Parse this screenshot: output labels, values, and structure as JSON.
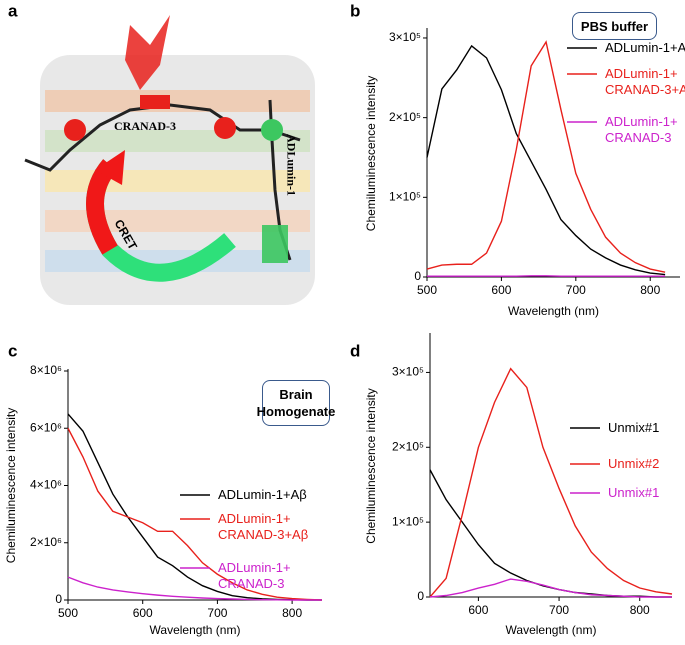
{
  "panel_a": {
    "label": "a",
    "labels": [
      "CRANAD-3",
      "ADLumin-1",
      "CRET"
    ]
  },
  "chart_data": [
    {
      "type": "line",
      "panel": "b",
      "annotation": "PBS buffer",
      "xlabel": "Wavelength (nm)",
      "ylabel": "Chemiluminescence intensity",
      "x": [
        500,
        520,
        540,
        560,
        580,
        600,
        620,
        640,
        660,
        680,
        700,
        720,
        740,
        760,
        780,
        800,
        820
      ],
      "xlim": [
        500,
        840
      ],
      "xticks": [
        500,
        600,
        700,
        800
      ],
      "ylim": [
        0,
        310000
      ],
      "yticks": [
        0,
        {
          "value": 100000,
          "label": "1×10⁵"
        },
        {
          "value": 200000,
          "label": "2×10⁵"
        },
        {
          "value": 300000,
          "label": "3×10⁵"
        }
      ],
      "series": [
        {
          "name": "ADLumin-1+Aβ",
          "color": "#000000",
          "values": [
            150000,
            236000,
            260000,
            290000,
            275000,
            235000,
            180000,
            145000,
            110000,
            72000,
            52000,
            35000,
            24000,
            15000,
            9000,
            5000,
            3000
          ]
        },
        {
          "name": "ADLumin-1+ CRANAD-3+Aβ",
          "color": "#e8211c",
          "values": [
            10000,
            15000,
            16000,
            16000,
            30000,
            70000,
            160000,
            265000,
            295000,
            210000,
            130000,
            85000,
            50000,
            30000,
            18000,
            10000,
            6000
          ]
        },
        {
          "name": "ADLumin-1+ CRANAD-3",
          "color": "#cc22cc",
          "values": [
            1000,
            1000,
            1000,
            1000,
            1000,
            1000,
            1000,
            1500,
            1500,
            1000,
            1000,
            1000,
            1000,
            1000,
            1000,
            1000,
            1000
          ]
        }
      ]
    },
    {
      "type": "line",
      "panel": "c",
      "annotation": "Brain Homogenate",
      "xlabel": "Wavelength (nm)",
      "ylabel": "Chemiluminescence intensity",
      "x": [
        500,
        520,
        540,
        560,
        580,
        600,
        620,
        640,
        660,
        680,
        700,
        720,
        740,
        760,
        780,
        800,
        820,
        840
      ],
      "xlim": [
        500,
        840
      ],
      "xticks": [
        500,
        600,
        700,
        800
      ],
      "ylim": [
        0,
        8000000
      ],
      "yticks": [
        0,
        {
          "value": 2000000,
          "label": "2×10⁶"
        },
        {
          "value": 4000000,
          "label": "4×10⁶"
        },
        {
          "value": 6000000,
          "label": "6×10⁶"
        },
        {
          "value": 8000000,
          "label": "8×10⁶"
        }
      ],
      "series": [
        {
          "name": "ADLumin-1+Aβ",
          "color": "#000000",
          "values": [
            6500000,
            5900000,
            4800000,
            3700000,
            2900000,
            2200000,
            1500000,
            1200000,
            800000,
            500000,
            300000,
            150000,
            80000,
            40000,
            20000,
            10000,
            0,
            0
          ]
        },
        {
          "name": "ADLumin-1+ CRANAD-3+Aβ",
          "color": "#e8211c",
          "values": [
            6000000,
            5000000,
            3800000,
            3100000,
            2900000,
            2700000,
            2400000,
            2400000,
            1900000,
            1300000,
            900000,
            600000,
            350000,
            200000,
            100000,
            50000,
            20000,
            0
          ]
        },
        {
          "name": "ADLumin-1+ CRANAD-3",
          "color": "#cc22cc",
          "values": [
            800000,
            600000,
            450000,
            350000,
            280000,
            220000,
            170000,
            130000,
            100000,
            70000,
            50000,
            35000,
            20000,
            10000,
            5000,
            0,
            0,
            0
          ]
        }
      ]
    },
    {
      "type": "line",
      "panel": "d",
      "xlabel": "Wavelength (nm)",
      "ylabel": "Chemiluminescence intensity",
      "x": [
        540,
        560,
        580,
        600,
        620,
        640,
        660,
        680,
        700,
        720,
        740,
        760,
        780,
        800,
        820,
        840
      ],
      "xlim": [
        540,
        840
      ],
      "xticks": [
        600,
        700,
        800
      ],
      "ylim": [
        0,
        350000
      ],
      "yticks": [
        0,
        {
          "value": 100000,
          "label": "1×10⁵"
        },
        {
          "value": 200000,
          "label": "2×10⁵"
        },
        {
          "value": 300000,
          "label": "3×10⁵"
        }
      ],
      "series": [
        {
          "name": "Unmix#1",
          "color": "#000000",
          "values": [
            170000,
            130000,
            100000,
            70000,
            45000,
            32000,
            22000,
            15000,
            10000,
            6000,
            4000,
            2000,
            1000,
            1000,
            0,
            0
          ]
        },
        {
          "name": "Unmix#2",
          "color": "#e8211c",
          "values": [
            0,
            25000,
            110000,
            200000,
            260000,
            305000,
            280000,
            200000,
            145000,
            95000,
            60000,
            38000,
            22000,
            12000,
            7000,
            4000
          ]
        },
        {
          "name": "Unmix#1",
          "color": "#cc22cc",
          "values": [
            0,
            2000,
            6000,
            12000,
            17000,
            24000,
            21000,
            16000,
            10000,
            6000,
            3000,
            2000,
            1000,
            0,
            0,
            0
          ]
        }
      ]
    }
  ]
}
